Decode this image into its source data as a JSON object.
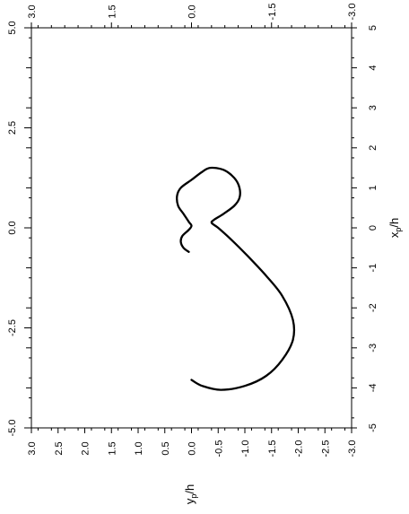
{
  "chart_data": {
    "type": "line",
    "title": "",
    "orientation": "rotated 90 degrees counter-clockwise",
    "axes": {
      "x_data": {
        "label": "x",
        "subscript": "p",
        "suffix": "/h",
        "range": [
          -5,
          5
        ],
        "ticks": [
          "-5",
          "-4",
          "-3",
          "-2",
          "-1",
          "0",
          "1",
          "2",
          "3",
          "4",
          "5"
        ],
        "outer_ticks": [
          "-5.0",
          "-2.5",
          "0.0",
          "2.5",
          "5.0"
        ]
      },
      "y_data": {
        "label": "y",
        "subscript": "p",
        "suffix": "/h",
        "range": [
          -3,
          3
        ],
        "ticks": [
          "3.0",
          "2.5",
          "2.0",
          "1.5",
          "1.0",
          "0.5",
          "0.0",
          "-0.5",
          "-1.0",
          "-1.5",
          "-2.0",
          "-2.5",
          "-3.0"
        ],
        "top_ticks": [
          "3.0",
          "1.5",
          "0.0",
          "-1.5",
          "-3.0"
        ]
      }
    },
    "series": [
      {
        "color": "#000000",
        "points": [
          [
            -0.6,
            0.05
          ],
          [
            -0.5,
            0.15
          ],
          [
            -0.35,
            0.2
          ],
          [
            -0.2,
            0.17
          ],
          [
            -0.05,
            0.05
          ],
          [
            0.05,
            0.0
          ],
          [
            0.15,
            0.05
          ],
          [
            0.35,
            0.15
          ],
          [
            0.55,
            0.25
          ],
          [
            0.8,
            0.27
          ],
          [
            1.0,
            0.2
          ],
          [
            1.2,
            0.0
          ],
          [
            1.4,
            -0.2
          ],
          [
            1.5,
            -0.35
          ],
          [
            1.45,
            -0.6
          ],
          [
            1.25,
            -0.8
          ],
          [
            1.0,
            -0.9
          ],
          [
            0.75,
            -0.9
          ],
          [
            0.55,
            -0.8
          ],
          [
            0.35,
            -0.6
          ],
          [
            0.2,
            -0.42
          ],
          [
            0.12,
            -0.38
          ],
          [
            0.0,
            -0.5
          ],
          [
            -0.3,
            -0.75
          ],
          [
            -0.7,
            -1.05
          ],
          [
            -1.2,
            -1.4
          ],
          [
            -1.7,
            -1.7
          ],
          [
            -2.3,
            -1.9
          ],
          [
            -2.8,
            -1.9
          ],
          [
            -3.3,
            -1.7
          ],
          [
            -3.7,
            -1.4
          ],
          [
            -3.95,
            -1.0
          ],
          [
            -4.05,
            -0.55
          ],
          [
            -3.95,
            -0.2
          ],
          [
            -3.8,
            0.0
          ]
        ]
      }
    ]
  }
}
